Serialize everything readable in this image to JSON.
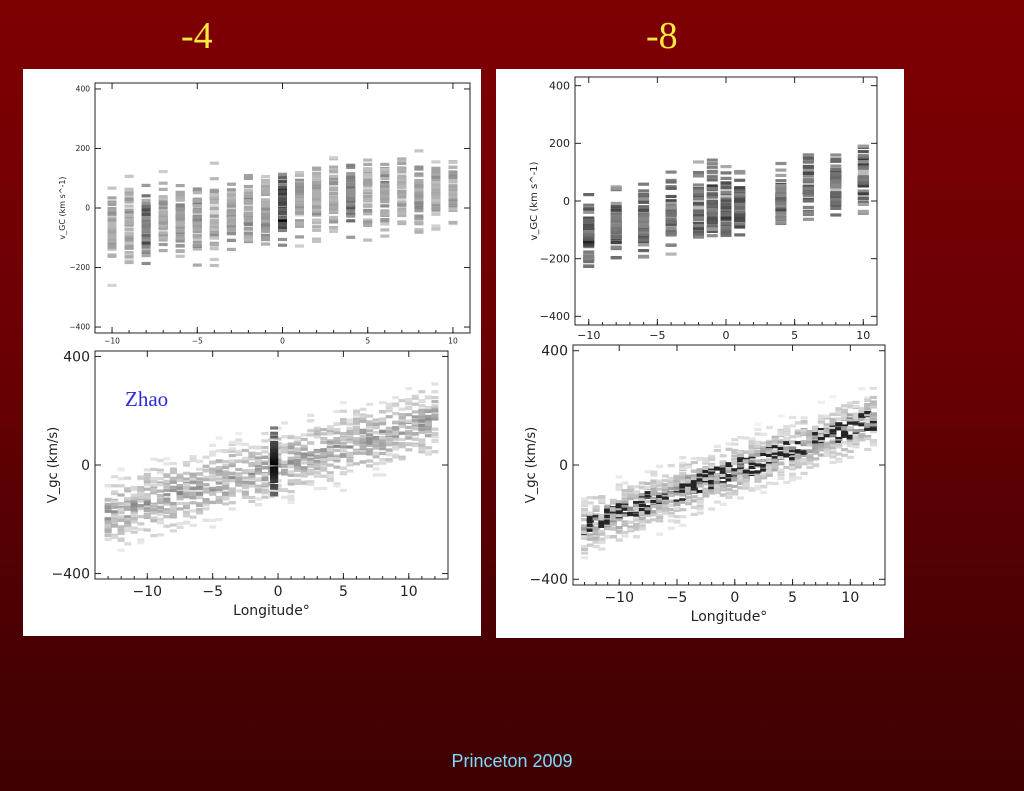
{
  "slide": {
    "left_title": "-4",
    "right_title": "-8",
    "footer": "Princeton 2009",
    "background_color": "#7e0003",
    "title_color": "#ffe840",
    "footer_color": "#7fdcff"
  },
  "chart_data": [
    {
      "type": "heatmap",
      "panel": "left-top",
      "ylabel": "v_GC (km s^-1)",
      "xlim": [
        -11,
        11
      ],
      "ylim": [
        -420,
        420
      ],
      "xticks": [
        -10,
        -5,
        0,
        5,
        10
      ],
      "yticks": [
        -400,
        -200,
        0,
        200,
        400
      ],
      "style": "strips",
      "columns": [
        {
          "x": -10,
          "mean": -70,
          "spread": 130,
          "intensity": 0.45
        },
        {
          "x": -9,
          "mean": -60,
          "spread": 120,
          "intensity": 0.45
        },
        {
          "x": -8,
          "mean": -70,
          "spread": 110,
          "intensity": 0.75
        },
        {
          "x": -7,
          "mean": -50,
          "spread": 120,
          "intensity": 0.45
        },
        {
          "x": -6,
          "mean": -40,
          "spread": 120,
          "intensity": 0.5
        },
        {
          "x": -5,
          "mean": -40,
          "spread": 110,
          "intensity": 0.55
        },
        {
          "x": -4,
          "mean": -30,
          "spread": 120,
          "intensity": 0.45
        },
        {
          "x": -3,
          "mean": -20,
          "spread": 110,
          "intensity": 0.5
        },
        {
          "x": -2,
          "mean": -10,
          "spread": 110,
          "intensity": 0.5
        },
        {
          "x": -1,
          "mean": -10,
          "spread": 110,
          "intensity": 0.5
        },
        {
          "x": 0,
          "mean": 0,
          "spread": 110,
          "intensity": 1.0
        },
        {
          "x": 1,
          "mean": 10,
          "spread": 110,
          "intensity": 0.5
        },
        {
          "x": 2,
          "mean": 20,
          "spread": 110,
          "intensity": 0.45
        },
        {
          "x": 3,
          "mean": 30,
          "spread": 110,
          "intensity": 0.45
        },
        {
          "x": 4,
          "mean": 40,
          "spread": 100,
          "intensity": 0.7
        },
        {
          "x": 5,
          "mean": 40,
          "spread": 110,
          "intensity": 0.45
        },
        {
          "x": 6,
          "mean": 50,
          "spread": 100,
          "intensity": 0.5
        },
        {
          "x": 7,
          "mean": 50,
          "spread": 100,
          "intensity": 0.45
        },
        {
          "x": 8,
          "mean": 60,
          "spread": 100,
          "intensity": 0.5
        },
        {
          "x": 9,
          "mean": 60,
          "spread": 90,
          "intensity": 0.45
        },
        {
          "x": 10,
          "mean": 60,
          "spread": 90,
          "intensity": 0.45
        }
      ]
    },
    {
      "type": "heatmap",
      "panel": "left-bottom",
      "annotation": "Zhao",
      "xlabel": "Longitude°",
      "ylabel": "V_gc (km/s)",
      "xlim": [
        -14,
        13
      ],
      "ylim": [
        -420,
        420
      ],
      "xticks": [
        -10,
        -5,
        0,
        5,
        10
      ],
      "yticks": [
        -400,
        0,
        400
      ],
      "style": "dense",
      "trend": {
        "slope": 14,
        "intercept": 0,
        "spread": 110
      },
      "bulge": {
        "x": -0.3,
        "spread": 150,
        "intensity": 1.0
      }
    },
    {
      "type": "heatmap",
      "panel": "right-top",
      "ylabel": "v_GC (km s^-1)",
      "xlim": [
        -11,
        11
      ],
      "ylim": [
        -430,
        430
      ],
      "xticks": [
        -10,
        -5,
        0,
        5,
        10
      ],
      "yticks": [
        -400,
        -200,
        0,
        200,
        400
      ],
      "style": "strips",
      "columns": [
        {
          "x": -10,
          "mean": -100,
          "spread": 110,
          "intensity": 0.85
        },
        {
          "x": -8,
          "mean": -90,
          "spread": 120,
          "intensity": 0.75
        },
        {
          "x": -6,
          "mean": -80,
          "spread": 120,
          "intensity": 0.75
        },
        {
          "x": -4,
          "mean": -40,
          "spread": 110,
          "intensity": 0.75
        },
        {
          "x": -2,
          "mean": -30,
          "spread": 120,
          "intensity": 0.85
        },
        {
          "x": -1,
          "mean": -10,
          "spread": 120,
          "intensity": 0.85
        },
        {
          "x": 0,
          "mean": -10,
          "spread": 120,
          "intensity": 0.85
        },
        {
          "x": 1,
          "mean": 0,
          "spread": 120,
          "intensity": 0.85
        },
        {
          "x": 4,
          "mean": 20,
          "spread": 100,
          "intensity": 0.8
        },
        {
          "x": 6,
          "mean": 50,
          "spread": 110,
          "intensity": 0.8
        },
        {
          "x": 8,
          "mean": 50,
          "spread": 100,
          "intensity": 0.8
        },
        {
          "x": 10,
          "mean": 90,
          "spread": 100,
          "intensity": 0.85
        }
      ]
    },
    {
      "type": "heatmap",
      "panel": "right-bottom",
      "xlabel": "Longitude°",
      "ylabel": "V_gc (km/s)",
      "xlim": [
        -14,
        13
      ],
      "ylim": [
        -420,
        420
      ],
      "xticks": [
        -10,
        -5,
        0,
        5,
        10
      ],
      "yticks": [
        -400,
        0,
        400
      ],
      "style": "dense",
      "trend": {
        "slope": 15,
        "intercept": -20,
        "spread": 85
      },
      "bulge": null
    }
  ]
}
